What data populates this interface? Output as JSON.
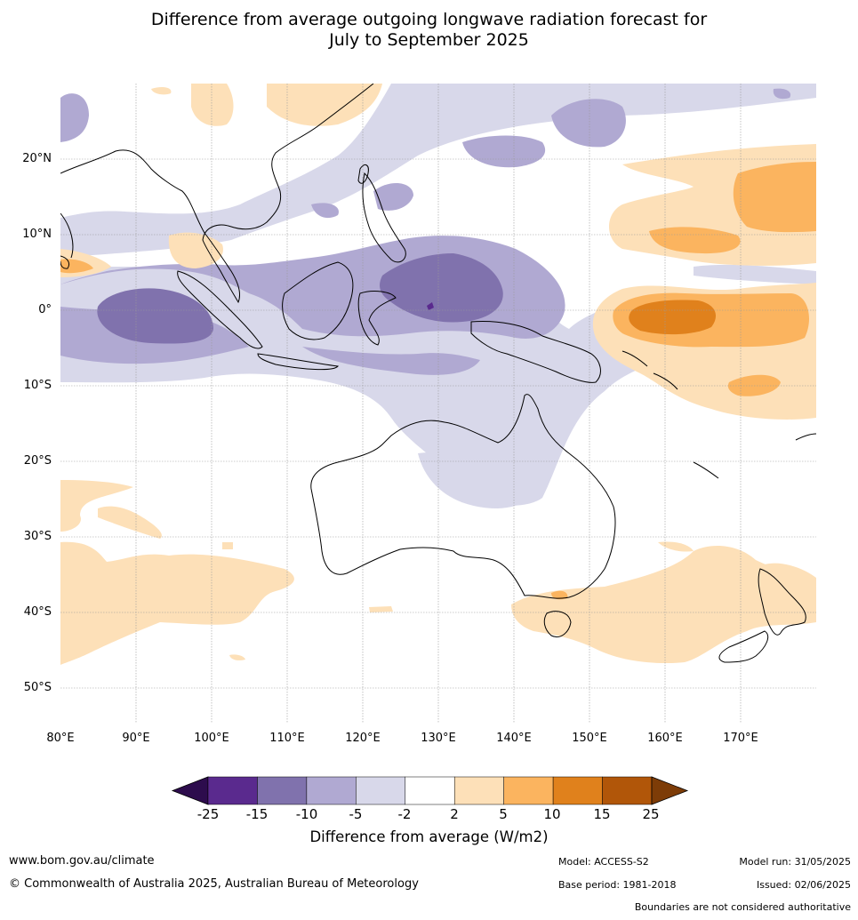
{
  "title_line1": "Difference from average outgoing longwave radiation forecast for",
  "title_line2": "July to September 2025",
  "lat_labels": [
    "20°N",
    "10°N",
    "0°",
    "10°S",
    "20°S",
    "30°S",
    "40°S",
    "50°S"
  ],
  "lon_labels": [
    "80°E",
    "90°E",
    "100°E",
    "110°E",
    "120°E",
    "130°E",
    "140°E",
    "150°E",
    "160°E",
    "170°E"
  ],
  "colorbar": {
    "title": "Difference from average (W/m2)",
    "ticks": [
      "-25",
      "-15",
      "-10",
      "-5",
      "-2",
      "2",
      "5",
      "10",
      "15",
      "25"
    ],
    "colors": [
      "#2d0c4d",
      "#5a2a8e",
      "#8072ad",
      "#b0a9d2",
      "#d8d8ea",
      "#ffffff",
      "#fde0b8",
      "#fbb45f",
      "#e0811c",
      "#b15609",
      "#7d3c07"
    ]
  },
  "footer": {
    "website": "www.bom.gov.au/climate",
    "copyright": "© Commonwealth of Australia 2025, Australian Bureau of Meteorology",
    "model": "Model: ACCESS-S2",
    "model_run": "Model run: 31/05/2025",
    "base_period": "Base period: 1981-2018",
    "issued": "Issued: 02/06/2025",
    "disclaimer": "Boundaries are not considered authoritative"
  }
}
